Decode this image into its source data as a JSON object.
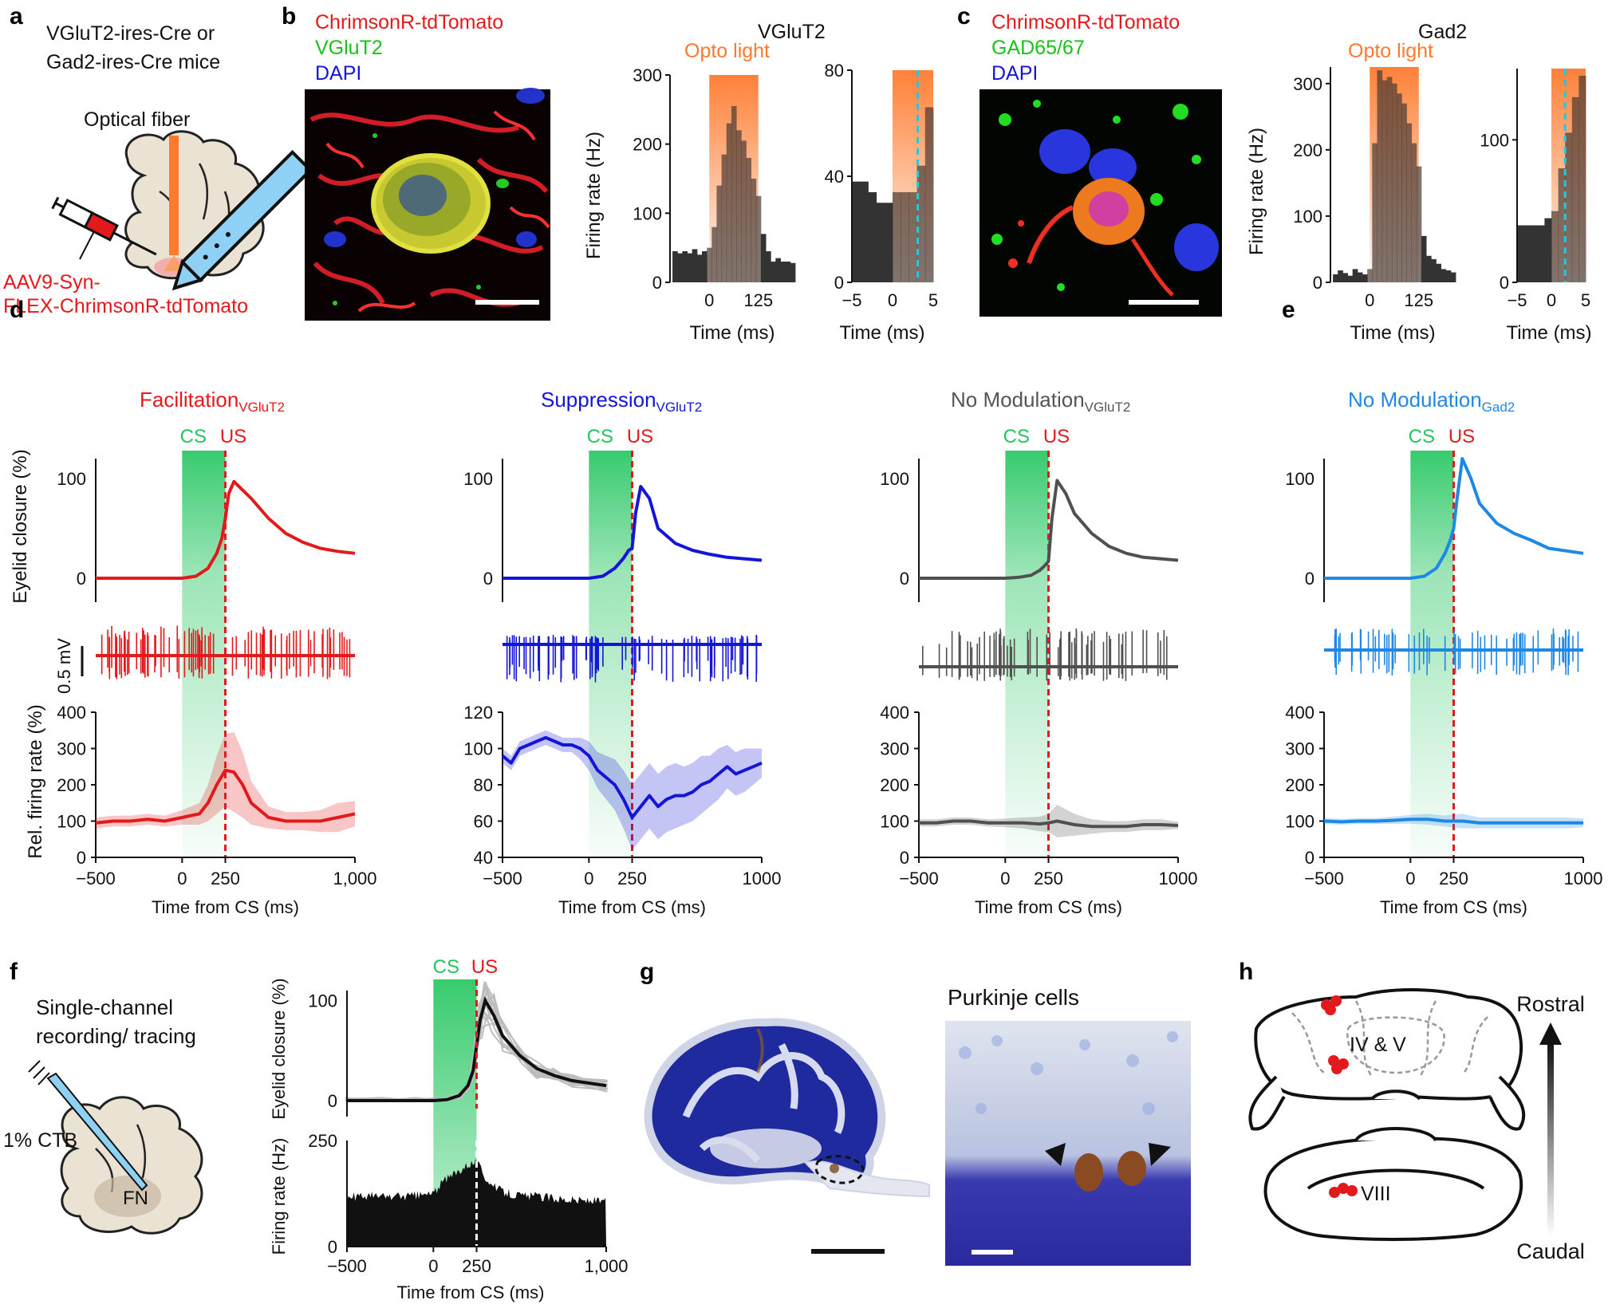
{
  "colors": {
    "red": "#e31a1c",
    "blue": "#1515d8",
    "gray": "#505050",
    "lightblue": "#1f88e5",
    "green": "#22c55e",
    "orange": "#ff8a3d",
    "cyan": "#22c7e0"
  },
  "panel_a": {
    "letter": "a",
    "title1": "VGluT2-ires-Cre or",
    "title2": "Gad2-ires-Cre mice",
    "fiber": "Optical fiber",
    "virus1": "AAV9-Syn-",
    "virus2": "FLEX-ChrimsonR-tdTomato"
  },
  "panel_b": {
    "letter": "b",
    "stain": [
      "ChrimsonR-tdTomato",
      "VGluT2",
      "DAPI"
    ],
    "title": "VGluT2",
    "opto": "Opto light"
  },
  "panel_c": {
    "letter": "c",
    "stain": [
      "ChrimsonR-tdTomato",
      "GAD65/67",
      "DAPI"
    ],
    "title": "Gad2",
    "opto": "Opto light"
  },
  "labels": {
    "firing_hz": "Firing rate (Hz)",
    "time_ms": "Time (ms)",
    "eyelid": "Eyelid closure (%)",
    "rel_rate": "Rel. firing rate (%)",
    "time_cs": "Time from CS (ms)",
    "scale_mv": "0.5 mV",
    "cs": "CS",
    "us": "US"
  },
  "panel_d": {
    "letter": "d",
    "titles": [
      {
        "main": "Facilitation",
        "sub": "VGluT2"
      },
      {
        "main": "Suppression",
        "sub": "VGluT2"
      },
      {
        "main": "No Modulation",
        "sub": "VGluT2"
      }
    ]
  },
  "panel_e": {
    "letter": "e",
    "title": {
      "main": "No Modulation",
      "sub": "Gad2"
    }
  },
  "panel_f": {
    "letter": "f",
    "t1": "Single-channel",
    "t2": "recording/ tracing",
    "ctb": "1% CTB",
    "fn": "FN"
  },
  "panel_g": {
    "letter": "g",
    "title": "Purkinje cells"
  },
  "panel_h": {
    "letter": "h",
    "rostral": "Rostral",
    "caudal": "Caudal",
    "lob1": "IV & V",
    "lob2": "VIII"
  },
  "chart_data": [
    {
      "id": "b_hist_long",
      "type": "bar",
      "title": "VGluT2",
      "xlabel": "Time (ms)",
      "ylabel": "Firing rate (Hz)",
      "xlim": [
        -100,
        225
      ],
      "ylim": [
        0,
        300
      ],
      "xticks": [
        "0",
        "125"
      ],
      "yticks": [
        "0",
        "100",
        "200",
        "300"
      ],
      "x": [
        -87.5,
        -75,
        -62.5,
        -50,
        -37.5,
        -25,
        -12.5,
        0,
        12.5,
        25,
        37.5,
        50,
        62.5,
        75,
        87.5,
        100,
        112.5,
        125,
        137.5,
        150,
        162.5,
        175,
        187.5,
        200,
        212.5
      ],
      "values": [
        45,
        42,
        45,
        42,
        48,
        40,
        45,
        50,
        80,
        140,
        185,
        230,
        255,
        220,
        205,
        180,
        150,
        125,
        70,
        45,
        30,
        35,
        30,
        30,
        28
      ],
      "shade": [
        0,
        125
      ]
    },
    {
      "id": "b_hist_short",
      "type": "bar",
      "xlabel": "Time (ms)",
      "xlim": [
        -5,
        5
      ],
      "ylim": [
        0,
        80
      ],
      "xticks": [
        "−5",
        "0",
        "5"
      ],
      "yticks": [
        "0",
        "40",
        "80"
      ],
      "x": [
        -4.5,
        -3.5,
        -2.5,
        -1.5,
        -0.5,
        0.5,
        1.5,
        2.5,
        3.5,
        4.5
      ],
      "values": [
        38,
        38,
        34,
        30,
        30,
        34,
        34,
        34,
        44,
        66
      ],
      "shade": [
        0,
        5
      ],
      "marker": 3.1
    },
    {
      "id": "c_hist_long",
      "type": "bar",
      "title": "Gad2",
      "xlabel": "Time (ms)",
      "ylabel": "Firing rate (Hz)",
      "xlim": [
        -100,
        225
      ],
      "ylim": [
        0,
        325
      ],
      "xticks": [
        "0",
        "125"
      ],
      "yticks": [
        "0",
        "100",
        "200",
        "300"
      ],
      "x": [
        -87.5,
        -75,
        -62.5,
        -50,
        -37.5,
        -25,
        -12.5,
        0,
        12.5,
        25,
        37.5,
        50,
        62.5,
        75,
        87.5,
        100,
        112.5,
        125,
        137.5,
        150,
        162.5,
        175,
        187.5,
        200,
        212.5
      ],
      "values": [
        12,
        18,
        14,
        10,
        20,
        15,
        12,
        20,
        210,
        320,
        305,
        310,
        300,
        285,
        270,
        240,
        210,
        175,
        70,
        40,
        35,
        28,
        20,
        18,
        15
      ],
      "shade": [
        0,
        125
      ]
    },
    {
      "id": "c_hist_short",
      "type": "bar",
      "xlabel": "Time (ms)",
      "xlim": [
        -5,
        5
      ],
      "ylim": [
        0,
        150
      ],
      "xticks": [
        "−5",
        "0",
        "5"
      ],
      "yticks": [
        "0",
        "100"
      ],
      "x": [
        -4.5,
        -3.5,
        -2.5,
        -1.5,
        -0.5,
        0.5,
        1.5,
        2.5,
        3.5,
        4.5
      ],
      "values": [
        40,
        40,
        40,
        40,
        45,
        50,
        80,
        105,
        130,
        145
      ],
      "shade": [
        0,
        5
      ],
      "marker": 2.0
    },
    {
      "id": "d1_eyelid",
      "type": "line",
      "series": "Facilitation",
      "xlim": [
        -500,
        1000
      ],
      "ylim": [
        0,
        120
      ],
      "yticks": [
        "0",
        "100"
      ],
      "x": [
        -500,
        -300,
        -100,
        0,
        80,
        150,
        200,
        230,
        250,
        270,
        300,
        400,
        500,
        600,
        700,
        800,
        900,
        1000
      ],
      "values": [
        0,
        0,
        0,
        0,
        2,
        10,
        25,
        40,
        60,
        85,
        97,
        80,
        60,
        45,
        36,
        30,
        27,
        25
      ]
    },
    {
      "id": "d2_eyelid",
      "type": "line",
      "series": "Suppression",
      "xlim": [
        -500,
        1000
      ],
      "ylim": [
        0,
        120
      ],
      "yticks": [
        "0",
        "100"
      ],
      "x": [
        -500,
        -300,
        -100,
        0,
        80,
        150,
        200,
        230,
        250,
        270,
        300,
        350,
        400,
        500,
        600,
        700,
        800,
        1000
      ],
      "values": [
        0,
        0,
        0,
        0,
        2,
        10,
        20,
        28,
        30,
        65,
        92,
        80,
        50,
        35,
        28,
        24,
        21,
        18
      ]
    },
    {
      "id": "d3_eyelid",
      "type": "line",
      "series": "No Modulation VGluT2",
      "xlim": [
        -500,
        1000
      ],
      "ylim": [
        0,
        120
      ],
      "yticks": [
        "0",
        "100"
      ],
      "x": [
        -500,
        -300,
        -100,
        0,
        80,
        150,
        200,
        230,
        250,
        270,
        300,
        350,
        400,
        500,
        600,
        700,
        800,
        1000
      ],
      "values": [
        0,
        0,
        0,
        0,
        1,
        3,
        8,
        13,
        17,
        60,
        98,
        85,
        65,
        45,
        32,
        25,
        21,
        18
      ]
    },
    {
      "id": "e_eyelid",
      "type": "line",
      "series": "No Modulation Gad2",
      "xlim": [
        -500,
        1000
      ],
      "ylim": [
        0,
        120
      ],
      "yticks": [
        "0",
        "100"
      ],
      "x": [
        -500,
        -300,
        -100,
        0,
        80,
        150,
        200,
        230,
        250,
        270,
        300,
        350,
        400,
        500,
        600,
        700,
        800,
        1000
      ],
      "values": [
        0,
        0,
        0,
        0,
        2,
        10,
        25,
        38,
        50,
        80,
        120,
        100,
        75,
        55,
        45,
        38,
        30,
        25
      ]
    },
    {
      "id": "d1_rate",
      "type": "area",
      "xlim": [
        -500,
        1000
      ],
      "ylim": [
        0,
        400
      ],
      "yticks": [
        "0",
        "100",
        "200",
        "300",
        "400"
      ],
      "xticks": [
        "−500",
        "0",
        "250",
        "1,000"
      ],
      "x": [
        -500,
        -400,
        -300,
        -200,
        -100,
        0,
        100,
        150,
        200,
        250,
        300,
        350,
        400,
        500,
        600,
        700,
        800,
        900,
        1000
      ],
      "values": [
        95,
        100,
        100,
        105,
        100,
        110,
        120,
        150,
        200,
        240,
        235,
        200,
        150,
        110,
        100,
        100,
        100,
        110,
        120
      ],
      "err": [
        15,
        15,
        15,
        15,
        15,
        20,
        30,
        50,
        80,
        100,
        110,
        90,
        60,
        30,
        25,
        25,
        30,
        40,
        35
      ]
    },
    {
      "id": "d2_rate",
      "type": "area",
      "xlim": [
        -500,
        1000
      ],
      "ylim": [
        40,
        120
      ],
      "yticks": [
        "40",
        "60",
        "80",
        "100",
        "120"
      ],
      "xticks": [
        "−500",
        "0",
        "250",
        "1000"
      ],
      "x": [
        -500,
        -450,
        -400,
        -350,
        -300,
        -250,
        -200,
        -150,
        -100,
        -50,
        0,
        50,
        100,
        150,
        200,
        250,
        300,
        350,
        400,
        450,
        500,
        550,
        600,
        650,
        700,
        750,
        800,
        850,
        900,
        950,
        1000
      ],
      "values": [
        96,
        92,
        100,
        102,
        104,
        106,
        104,
        102,
        102,
        100,
        96,
        88,
        84,
        80,
        72,
        62,
        68,
        74,
        68,
        72,
        74,
        74,
        76,
        80,
        82,
        86,
        90,
        86,
        88,
        90,
        92
      ],
      "err": [
        4,
        4,
        4,
        4,
        4,
        4,
        4,
        4,
        4,
        6,
        8,
        10,
        12,
        14,
        16,
        18,
        18,
        18,
        18,
        18,
        18,
        16,
        16,
        16,
        14,
        14,
        12,
        12,
        12,
        10,
        8
      ]
    },
    {
      "id": "d3_rate",
      "type": "area",
      "xlim": [
        -500,
        1000
      ],
      "ylim": [
        0,
        400
      ],
      "yticks": [
        "0",
        "100",
        "200",
        "300",
        "400"
      ],
      "xticks": [
        "−500",
        "0",
        "250",
        "1000"
      ],
      "x": [
        -500,
        -400,
        -300,
        -200,
        -100,
        0,
        100,
        200,
        250,
        300,
        400,
        500,
        600,
        700,
        800,
        900,
        1000
      ],
      "values": [
        95,
        95,
        100,
        100,
        95,
        95,
        95,
        92,
        95,
        100,
        90,
        85,
        85,
        85,
        90,
        90,
        88
      ],
      "err": [
        10,
        10,
        10,
        10,
        10,
        12,
        15,
        20,
        25,
        45,
        30,
        20,
        15,
        15,
        15,
        15,
        10
      ]
    },
    {
      "id": "e_rate",
      "type": "area",
      "xlim": [
        -500,
        1000
      ],
      "ylim": [
        0,
        400
      ],
      "yticks": [
        "0",
        "100",
        "200",
        "300",
        "400"
      ],
      "xticks": [
        "−500",
        "0",
        "250",
        "1000"
      ],
      "x": [
        -500,
        -400,
        -300,
        -200,
        -100,
        0,
        100,
        200,
        250,
        300,
        400,
        500,
        600,
        700,
        800,
        900,
        1000
      ],
      "values": [
        100,
        98,
        100,
        100,
        102,
        105,
        105,
        100,
        100,
        100,
        95,
        95,
        95,
        95,
        95,
        95,
        95
      ],
      "err": [
        8,
        8,
        8,
        8,
        10,
        12,
        15,
        15,
        18,
        20,
        15,
        15,
        15,
        15,
        15,
        15,
        12
      ]
    },
    {
      "id": "f_eyelid",
      "type": "line",
      "xlim": [
        -500,
        1000
      ],
      "ylim": [
        0,
        110
      ],
      "yticks": [
        "0",
        "100"
      ],
      "x": [
        -500,
        -300,
        -100,
        0,
        80,
        150,
        200,
        230,
        250,
        270,
        300,
        350,
        400,
        500,
        600,
        700,
        800,
        1000
      ],
      "values": [
        0,
        0,
        0,
        0,
        1,
        5,
        15,
        30,
        55,
        80,
        100,
        85,
        65,
        45,
        32,
        25,
        20,
        15
      ]
    },
    {
      "id": "f_rate",
      "type": "bar",
      "xlim": [
        -500,
        1000
      ],
      "ylim": [
        0,
        250
      ],
      "yticks": [
        "0",
        "250"
      ],
      "xticks": [
        "−500",
        "0",
        "250",
        "1,000"
      ],
      "x": [
        -500,
        -400,
        -300,
        -200,
        -100,
        0,
        50,
        100,
        150,
        200,
        250,
        300,
        350,
        400,
        500,
        600,
        700,
        800,
        900,
        1000
      ],
      "values": [
        115,
        120,
        118,
        118,
        120,
        125,
        150,
        165,
        180,
        195,
        200,
        165,
        140,
        130,
        120,
        118,
        115,
        110,
        108,
        105
      ]
    }
  ]
}
